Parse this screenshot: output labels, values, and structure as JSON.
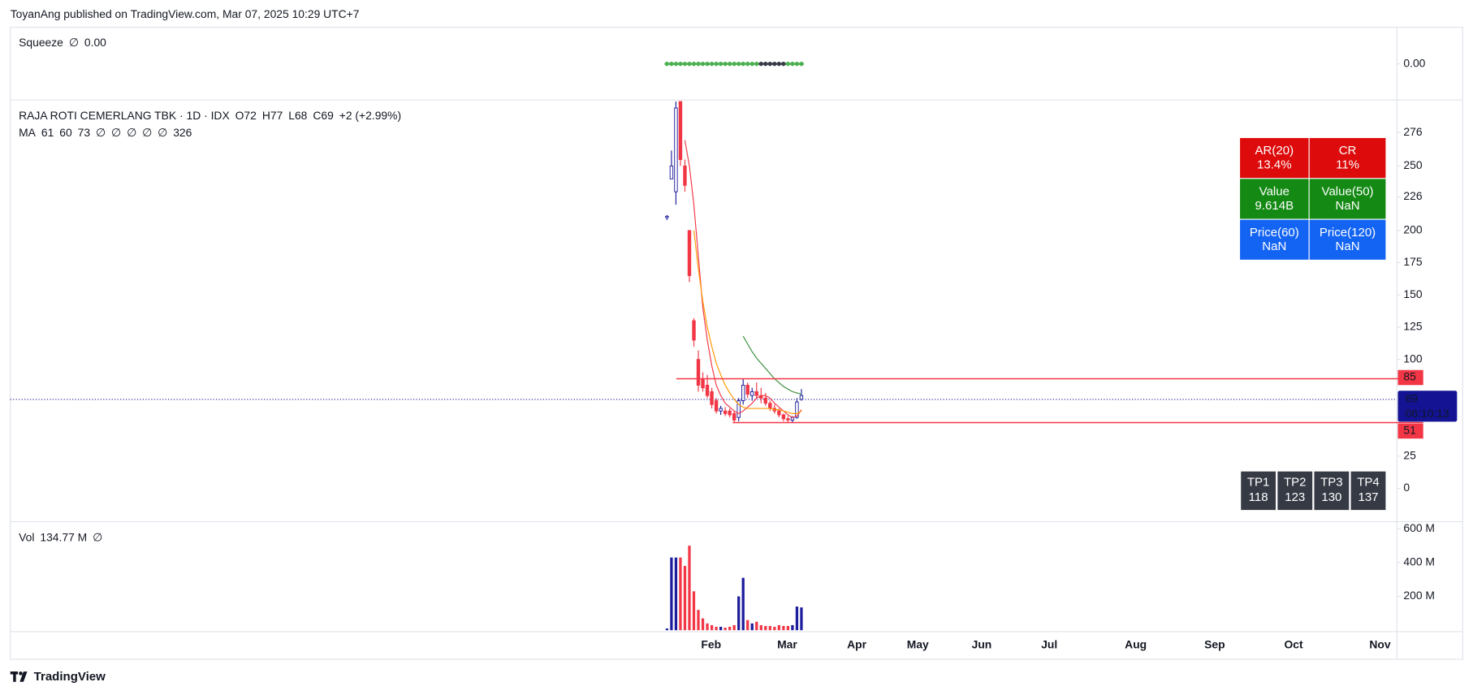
{
  "header": {
    "title": "ToyanAng published on TradingView.com, Mar 07, 2025 10:29 UTC+7"
  },
  "footer": {
    "brand": "TradingView"
  },
  "chart_data": [
    {
      "type": "dots",
      "name": "Squeeze",
      "legend_symbol": "∅",
      "legend_value": "0.00",
      "legend_value_color": "#4caf50",
      "values": [
        0,
        0,
        0,
        0,
        0,
        0,
        0,
        0,
        0,
        0,
        0,
        0,
        0,
        0,
        0,
        0,
        0,
        0,
        0,
        0,
        0,
        0,
        0,
        0,
        0,
        0,
        0,
        0,
        0,
        0,
        0
      ],
      "colors": [
        "#4caf50",
        "#4caf50",
        "#4caf50",
        "#4caf50",
        "#4caf50",
        "#4caf50",
        "#4caf50",
        "#4caf50",
        "#4caf50",
        "#4caf50",
        "#4caf50",
        "#4caf50",
        "#4caf50",
        "#4caf50",
        "#4caf50",
        "#4caf50",
        "#4caf50",
        "#4caf50",
        "#4caf50",
        "#4caf50",
        "#4caf50",
        "#363a45",
        "#363a45",
        "#363a45",
        "#363a45",
        "#363a45",
        "#363a45",
        "#4caf50",
        "#4caf50",
        "#4caf50",
        "#4caf50"
      ],
      "ylim": [
        -1,
        1
      ],
      "yticks": [
        {
          "value": 0,
          "label": "0.00"
        }
      ]
    },
    {
      "type": "candlestick",
      "symbol": "RAJA ROTI CEMERLANG TBK · 1D · IDX",
      "legend_values": [
        "O72",
        "H77",
        "L68",
        "C69",
        "+2 (+2.99%)"
      ],
      "legend_color": "#131394",
      "ma_label": "MA",
      "ma_legend": [
        {
          "text": "61",
          "color": "#f23645"
        },
        {
          "text": "60",
          "color": "#ff9800"
        },
        {
          "text": "73",
          "color": "#388e3c"
        },
        {
          "text": "∅",
          "color": "#131722"
        },
        {
          "text": "∅",
          "color": "#131722"
        },
        {
          "text": "∅",
          "color": "#131722"
        },
        {
          "text": "∅",
          "color": "#131722"
        },
        {
          "text": "∅",
          "color": "#131722"
        },
        {
          "text": "326",
          "color": "#f23645"
        }
      ],
      "open": [
        210,
        240,
        230,
        300,
        250,
        200,
        130,
        100,
        85,
        80,
        75,
        68,
        62,
        60,
        60,
        58,
        55,
        68,
        80,
        72,
        75,
        72,
        70,
        66,
        62,
        60,
        57,
        54,
        53,
        55,
        72
      ],
      "high": [
        212,
        262,
        300,
        300,
        255,
        200,
        132,
        107,
        90,
        88,
        78,
        70,
        64,
        63,
        62,
        60,
        70,
        85,
        82,
        78,
        82,
        78,
        74,
        68,
        65,
        62,
        58,
        56,
        56,
        70,
        77
      ],
      "low": [
        208,
        240,
        220,
        250,
        230,
        160,
        110,
        75,
        75,
        70,
        62,
        58,
        57,
        56,
        55,
        51,
        52,
        65,
        70,
        68,
        70,
        66,
        64,
        60,
        58,
        55,
        52,
        51,
        51,
        54,
        68
      ],
      "close": [
        211,
        250,
        295,
        255,
        235,
        165,
        115,
        80,
        78,
        72,
        65,
        60,
        60,
        58,
        57,
        53,
        68,
        80,
        73,
        75,
        72,
        70,
        66,
        62,
        60,
        57,
        54,
        53,
        55,
        67,
        69
      ],
      "up_color": "#1c1c9c",
      "down_color": "#f23645",
      "ma_series": [
        {
          "color": "#f23645",
          "values": [
            null,
            null,
            null,
            null,
            270,
            250,
            220,
            180,
            140,
            115,
            95,
            80,
            72,
            66,
            63,
            60,
            58,
            60,
            63,
            66,
            70,
            72,
            72,
            70,
            66,
            63,
            60,
            57,
            55,
            56,
            61
          ]
        },
        {
          "color": "#ff9800",
          "values": [
            null,
            null,
            null,
            null,
            null,
            null,
            200,
            170,
            145,
            125,
            110,
            97,
            88,
            80,
            74,
            69,
            65,
            63,
            62,
            62,
            62,
            62,
            62,
            62,
            61,
            61,
            60,
            59,
            58,
            58,
            60
          ]
        },
        {
          "color": "#388e3c",
          "values": [
            null,
            null,
            null,
            null,
            null,
            null,
            null,
            null,
            null,
            null,
            null,
            null,
            null,
            null,
            null,
            null,
            null,
            118,
            112,
            106,
            101,
            97,
            93,
            89,
            85,
            82,
            79,
            77,
            75,
            74,
            73
          ]
        }
      ],
      "levels": [
        85,
        51
      ],
      "level_color": "#f23645",
      "last": 69,
      "countdown": "06:10:13",
      "last_color": "#131394",
      "ylim": [
        -25.5,
        300.8
      ],
      "yticks": [
        0,
        25,
        100,
        125,
        150,
        175,
        200,
        226,
        250,
        276
      ],
      "categories": [
        "Feb",
        "Mar",
        "Apr",
        "May",
        "Jun",
        "Jul",
        "Aug",
        "Sep",
        "Oct",
        "Nov"
      ]
    },
    {
      "type": "bar",
      "name": "Vol",
      "legend_value": "134.77 M",
      "legend_symbol": "∅",
      "values": [
        10,
        430,
        430,
        430,
        380,
        500,
        230,
        120,
        70,
        40,
        30,
        20,
        20,
        15,
        20,
        30,
        200,
        310,
        60,
        40,
        50,
        30,
        25,
        25,
        20,
        30,
        25,
        25,
        30,
        140,
        134.77
      ],
      "ylim": [
        0,
        639
      ],
      "yticks": [
        {
          "value": 200,
          "label": "200 M"
        },
        {
          "value": 400,
          "label": "400 M"
        },
        {
          "value": 600,
          "label": "600 M"
        }
      ]
    }
  ],
  "info_table": {
    "rows": [
      {
        "color": "#dd0b0b",
        "cells": [
          [
            "AR(20)",
            "13.4%"
          ],
          [
            "CR",
            "11%"
          ]
        ]
      },
      {
        "color": "#148a14",
        "cells": [
          [
            "Value",
            "9.614B"
          ],
          [
            "Value(50)",
            "NaN"
          ]
        ]
      },
      {
        "color": "#1464f4",
        "cells": [
          [
            "Price(60)",
            "NaN"
          ],
          [
            "Price(120)",
            "NaN"
          ]
        ]
      }
    ]
  },
  "tp_table": {
    "color": "#363a45",
    "cells": [
      [
        "TP1",
        "118"
      ],
      [
        "TP2",
        "123"
      ],
      [
        "TP3",
        "130"
      ],
      [
        "TP4",
        "137"
      ]
    ]
  }
}
